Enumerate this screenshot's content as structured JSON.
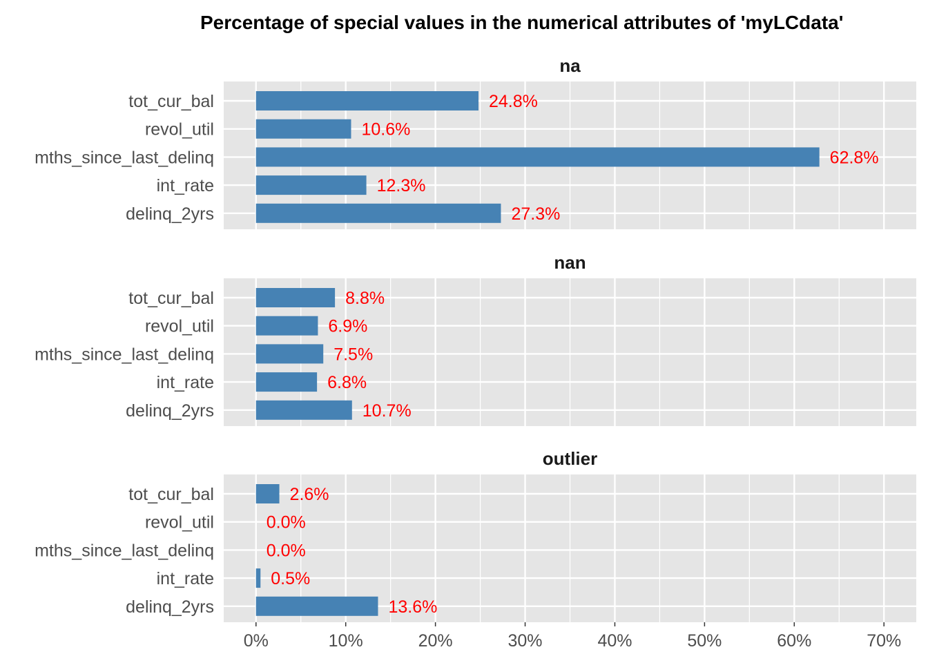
{
  "chart_data": {
    "type": "bar",
    "orientation": "horizontal",
    "title": "Percentage of special values in the numerical attributes of 'myLCdata'",
    "categories": [
      "tot_cur_bal",
      "revol_util",
      "mths_since_last_delinq",
      "int_rate",
      "delinq_2yrs"
    ],
    "panels": [
      {
        "name": "na",
        "values": [
          24.8,
          10.6,
          62.8,
          12.3,
          27.3
        ],
        "labels": [
          "24.8%",
          "10.6%",
          "62.8%",
          "12.3%",
          "27.3%"
        ]
      },
      {
        "name": "nan",
        "values": [
          8.8,
          6.9,
          7.5,
          6.8,
          10.7
        ],
        "labels": [
          "8.8%",
          "6.9%",
          "7.5%",
          "6.8%",
          "10.7%"
        ]
      },
      {
        "name": "outlier",
        "values": [
          2.6,
          0.0,
          0.0,
          0.5,
          13.6
        ],
        "labels": [
          "2.6%",
          "0.0%",
          "0.0%",
          "0.5%",
          "13.6%"
        ]
      }
    ],
    "xlim": [
      -3.6,
      73.6
    ],
    "ticks": [
      0,
      10,
      20,
      30,
      40,
      50,
      60,
      70
    ],
    "tick_labels": [
      "0%",
      "10%",
      "20%",
      "30%",
      "40%",
      "50%",
      "60%",
      "70%"
    ],
    "xlabel": "",
    "ylabel": "",
    "grid": true,
    "legend": "none",
    "colors": {
      "bar": "#4682b4",
      "label": "#ff0000",
      "panel_bg": "#e5e5e5",
      "grid": "#ffffff"
    }
  }
}
